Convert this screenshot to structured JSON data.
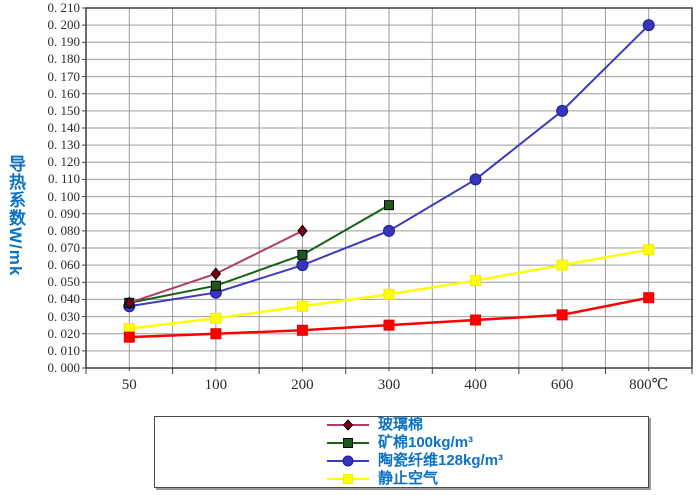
{
  "chart_data": {
    "type": "line",
    "title": "",
    "ylabel": "导热系数W/mk",
    "xlabel": "",
    "x_unit": "℃",
    "x_categories": [
      "50",
      "100",
      "200",
      "300",
      "400",
      "600",
      "800℃"
    ],
    "y_axis": {
      "min": 0.0,
      "max": 0.21,
      "step": 0.01,
      "tick_labels": [
        "0. 210",
        "0. 200",
        "0. 190",
        "0. 180",
        "0. 170",
        "0. 160",
        "0. 150",
        "0. 140",
        "0. 130",
        "0. 120",
        "0. 110",
        "0. 100",
        "0. 090",
        "0. 080",
        "0. 070",
        "0. 060",
        "0. 050",
        "0. 040",
        "0. 030",
        "0. 020",
        "0. 010",
        "0. 000"
      ]
    },
    "grid": true,
    "legend_position": "bottom",
    "series": [
      {
        "name": "玻璃棉",
        "marker": "diamond",
        "line_color": "#B23A66",
        "marker_color": "#7A0019",
        "marker_edge": "#000000",
        "in_legend": true,
        "values": [
          0.038,
          0.055,
          0.08,
          null,
          null,
          null,
          null
        ]
      },
      {
        "name": "矿棉100kg/m³",
        "marker": "square",
        "line_color": "#176117",
        "marker_color": "#1E5A1E",
        "marker_edge": "#000000",
        "in_legend": true,
        "values": [
          0.038,
          0.048,
          0.066,
          0.095,
          null,
          null,
          null
        ]
      },
      {
        "name": "陶瓷纤维128kg/m³",
        "marker": "circle",
        "line_color": "#3B3BC0",
        "marker_color": "#3535BE",
        "marker_edge": "#20208C",
        "in_legend": true,
        "values": [
          0.036,
          0.044,
          0.06,
          0.08,
          0.11,
          0.15,
          0.2
        ]
      },
      {
        "name": "静止空气",
        "marker": "square",
        "line_color": "#FFFF00",
        "marker_color": "#FFFF00",
        "marker_edge": "#EDED00",
        "in_legend": true,
        "values": [
          0.023,
          0.029,
          0.036,
          0.043,
          0.051,
          0.06,
          0.069
        ]
      },
      {
        "name": "",
        "marker": "square",
        "line_color": "#FF0000",
        "marker_color": "#FF0000",
        "marker_edge": "#E00000",
        "in_legend": false,
        "values": [
          0.018,
          0.02,
          0.022,
          0.025,
          0.028,
          0.031,
          0.041
        ]
      }
    ],
    "colors": {
      "axis_text": "#2B2B2B",
      "label_blue": "#0B72C5",
      "gridline": "#9B9B9B",
      "plot_border": "#3F3F3F",
      "background": "#FFFFFF"
    }
  }
}
